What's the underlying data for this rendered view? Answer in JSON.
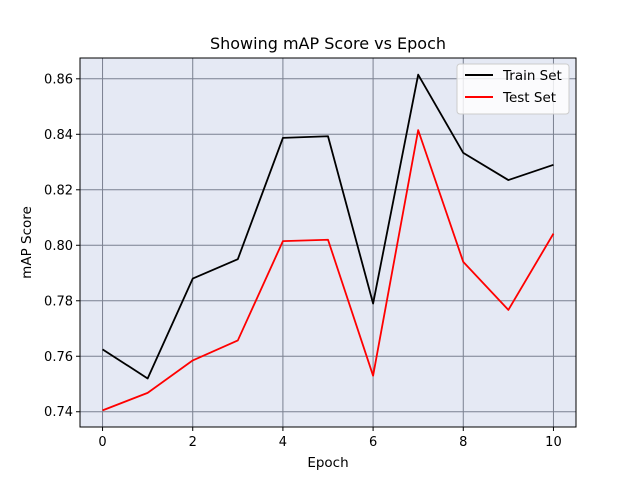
{
  "chart_data": {
    "type": "line",
    "title": "Showing mAP Score vs Epoch",
    "xlabel": "Epoch",
    "ylabel": "mAP Score",
    "x": [
      0,
      1,
      2,
      3,
      4,
      5,
      6,
      7,
      8,
      9,
      10
    ],
    "xlim": [
      -0.5,
      10.5
    ],
    "ylim": [
      0.7345,
      0.8675
    ],
    "xticks": [
      0,
      2,
      4,
      6,
      8,
      10
    ],
    "xtick_labels": [
      "0",
      "2",
      "4",
      "6",
      "8",
      "10"
    ],
    "yticks": [
      0.74,
      0.76,
      0.78,
      0.8,
      0.82,
      0.84,
      0.86
    ],
    "ytick_labels": [
      "0.74",
      "0.76",
      "0.78",
      "0.80",
      "0.82",
      "0.84",
      "0.86"
    ],
    "grid": true,
    "legend_position": "top-right",
    "background_color": "#e5e9f4",
    "grid_color": "#7a8090",
    "series": [
      {
        "name": "Train Set",
        "color": "#000000",
        "values": [
          0.7625,
          0.752,
          0.788,
          0.795,
          0.8387,
          0.8393,
          0.779,
          0.8615,
          0.8333,
          0.8235,
          0.829
        ]
      },
      {
        "name": "Test Set",
        "color": "#ff0000",
        "values": [
          0.7405,
          0.7468,
          0.7585,
          0.7657,
          0.8015,
          0.802,
          0.753,
          0.8415,
          0.794,
          0.7767,
          0.8042
        ]
      }
    ]
  }
}
